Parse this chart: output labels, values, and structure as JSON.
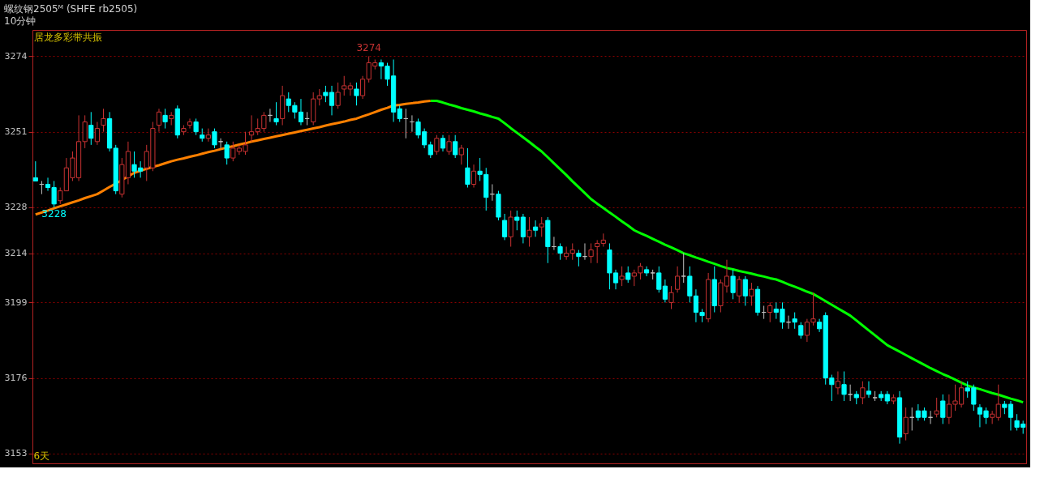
{
  "chart_data": {
    "type": "candlestick",
    "title": "螺纹钢2505ᴹ (SHFE rb2505)",
    "subtitle": "10分钟",
    "annotations": [
      "居龙多彩带共振",
      "6天",
      {
        "text": "3274",
        "y": 3274
      },
      {
        "text": "3228",
        "y": 3228
      }
    ],
    "categories": [
      null,
      null,
      null,
      null,
      null,
      null,
      null,
      null,
      null,
      null,
      null,
      null,
      null,
      null,
      null,
      null,
      null,
      null,
      null,
      null,
      null,
      null,
      null,
      null,
      null,
      null,
      null,
      null,
      null,
      null,
      null,
      null,
      null,
      null,
      null,
      null,
      null,
      null,
      null,
      null,
      null,
      null,
      null,
      null,
      null,
      null,
      null,
      null,
      null,
      null,
      null,
      null,
      null,
      null,
      null,
      null,
      null,
      null,
      null,
      null,
      null,
      null,
      null,
      null,
      null,
      null,
      null,
      null,
      null,
      null,
      null,
      null,
      null,
      null,
      null,
      null,
      null,
      null,
      null,
      null,
      null,
      null,
      null,
      null,
      null,
      null,
      null,
      null,
      null,
      null,
      null,
      null,
      null,
      null,
      null,
      null,
      null,
      null,
      null,
      null,
      null,
      null,
      null,
      null,
      null,
      null,
      null,
      null,
      null,
      null,
      null,
      null,
      null,
      null,
      null,
      null,
      null,
      null,
      null,
      null,
      null,
      null,
      null,
      null,
      null,
      null,
      null,
      null,
      null,
      null,
      null,
      null,
      null,
      null,
      null,
      null,
      null,
      null,
      null,
      null,
      null,
      null,
      null,
      null,
      null,
      null,
      null,
      null,
      null,
      null,
      null,
      null,
      null,
      null,
      null,
      null,
      null,
      null,
      null,
      null,
      null
    ],
    "ohlc": [
      [
        3237,
        3242,
        3236,
        3236
      ],
      [
        3235,
        3236,
        3232,
        3235
      ],
      [
        3235,
        3237,
        3233,
        3234
      ],
      [
        3234,
        3236,
        3228,
        3229
      ],
      [
        3230,
        3234,
        3229,
        3233
      ],
      [
        3233,
        3243,
        3233,
        3240
      ],
      [
        3237,
        3245,
        3236,
        3243
      ],
      [
        3237,
        3256,
        3236,
        3248
      ],
      [
        3248,
        3256,
        3246,
        3254
      ],
      [
        3253,
        3257,
        3247,
        3249
      ],
      [
        3248,
        3254,
        3247,
        3252
      ],
      [
        3253,
        3258,
        3251,
        3255
      ],
      [
        3255,
        3257,
        3245,
        3246
      ],
      [
        3246,
        3247,
        3232,
        3233
      ],
      [
        3232,
        3243,
        3231,
        3241
      ],
      [
        3237,
        3248,
        3235,
        3245
      ],
      [
        3241,
        3245,
        3237,
        3239
      ],
      [
        3240,
        3242,
        3237,
        3239
      ],
      [
        3240,
        3247,
        3236,
        3245
      ],
      [
        3240,
        3254,
        3239,
        3252
      ],
      [
        3253,
        3258,
        3251,
        3257
      ],
      [
        3256,
        3258,
        3252,
        3254
      ],
      [
        3255,
        3257,
        3253,
        3256
      ],
      [
        3258,
        3259,
        3249,
        3250
      ],
      [
        3251,
        3253,
        3250,
        3252
      ],
      [
        3253,
        3255,
        3252,
        3254
      ],
      [
        3254,
        3255,
        3250,
        3251
      ],
      [
        3250,
        3252,
        3248,
        3249
      ],
      [
        3249,
        3252,
        3248,
        3250
      ],
      [
        3251,
        3252,
        3246,
        3247
      ],
      [
        3248,
        3249,
        3246,
        3248
      ],
      [
        3247,
        3248,
        3241,
        3243
      ],
      [
        3243,
        3248,
        3242,
        3246
      ],
      [
        3245,
        3247,
        3244,
        3246
      ],
      [
        3245,
        3251,
        3244,
        3247
      ],
      [
        3250,
        3256,
        3248,
        3251
      ],
      [
        3251,
        3255,
        3250,
        3252
      ],
      [
        3252,
        3257,
        3251,
        3256
      ],
      [
        3256,
        3258,
        3254,
        3256
      ],
      [
        3255,
        3260,
        3253,
        3254
      ],
      [
        3255,
        3265,
        3253,
        3262
      ],
      [
        3261,
        3263,
        3257,
        3259
      ],
      [
        3259,
        3260,
        3255,
        3257
      ],
      [
        3257,
        3261,
        3253,
        3254
      ],
      [
        3255,
        3257,
        3253,
        3255
      ],
      [
        3254,
        3263,
        3253,
        3261
      ],
      [
        3261,
        3264,
        3259,
        3262
      ],
      [
        3263,
        3265,
        3260,
        3262
      ],
      [
        3263,
        3265,
        3256,
        3259
      ],
      [
        3259,
        3266,
        3258,
        3263
      ],
      [
        3264,
        3268,
        3262,
        3265
      ],
      [
        3264,
        3266,
        3262,
        3265
      ],
      [
        3264,
        3266,
        3259,
        3262
      ],
      [
        3262,
        3268,
        3261,
        3267
      ],
      [
        3267,
        3274,
        3266,
        3272
      ],
      [
        3271,
        3273,
        3270,
        3272
      ],
      [
        3272,
        3273,
        3267,
        3271
      ],
      [
        3271,
        3272,
        3265,
        3267
      ],
      [
        3268,
        3273,
        3254,
        3257
      ],
      [
        3258,
        3259,
        3254,
        3255
      ],
      [
        3255,
        3258,
        3249,
        3255
      ],
      [
        3254,
        3256,
        3251,
        3254
      ],
      [
        3254,
        3255,
        3249,
        3250
      ],
      [
        3251,
        3252,
        3246,
        3247
      ],
      [
        3247,
        3248,
        3243,
        3244
      ],
      [
        3245,
        3250,
        3244,
        3249
      ],
      [
        3249,
        3250,
        3245,
        3246
      ],
      [
        3245,
        3250,
        3244,
        3248
      ],
      [
        3248,
        3250,
        3243,
        3244
      ],
      [
        3244,
        3247,
        3241,
        3246
      ],
      [
        3240,
        3246,
        3234,
        3235
      ],
      [
        3235,
        3241,
        3234,
        3239
      ],
      [
        3239,
        3243,
        3236,
        3238
      ],
      [
        3238,
        3240,
        3227,
        3231
      ],
      [
        3232,
        3235,
        3230,
        3232
      ],
      [
        3232,
        3233,
        3224,
        3225
      ],
      [
        3224,
        3226,
        3218,
        3219
      ],
      [
        3219,
        3227,
        3216,
        3225
      ],
      [
        3225,
        3227,
        3221,
        3224
      ],
      [
        3225,
        3226,
        3217,
        3219
      ],
      [
        3219,
        3225,
        3216,
        3221
      ],
      [
        3222,
        3224,
        3219,
        3221
      ],
      [
        3222,
        3225,
        3219,
        3223
      ],
      [
        3224,
        3225,
        3211,
        3216
      ],
      [
        3216,
        3219,
        3215,
        3216
      ],
      [
        3216,
        3217,
        3212,
        3214
      ],
      [
        3213,
        3216,
        3212,
        3214
      ],
      [
        3214,
        3217,
        3212,
        3215
      ],
      [
        3214,
        3215,
        3210,
        3213
      ],
      [
        3213,
        3217,
        3212,
        3213
      ],
      [
        3213,
        3217,
        3211,
        3215
      ],
      [
        3216,
        3218,
        3211,
        3217
      ],
      [
        3217,
        3220,
        3216,
        3218
      ],
      [
        3215,
        3217,
        3203,
        3208
      ],
      [
        3208,
        3209,
        3203,
        3205
      ],
      [
        3206,
        3210,
        3204,
        3207
      ],
      [
        3208,
        3210,
        3205,
        3206
      ],
      [
        3207,
        3209,
        3204,
        3208
      ],
      [
        3208,
        3211,
        3206,
        3210
      ],
      [
        3209,
        3210,
        3207,
        3208
      ],
      [
        3208,
        3209,
        3206,
        3208
      ],
      [
        3208,
        3210,
        3202,
        3203
      ],
      [
        3204,
        3206,
        3199,
        3200
      ],
      [
        3199,
        3204,
        3197,
        3202
      ],
      [
        3203,
        3210,
        3202,
        3207
      ],
      [
        3207,
        3214,
        3205,
        3207
      ],
      [
        3207,
        3210,
        3199,
        3201
      ],
      [
        3201,
        3203,
        3193,
        3196
      ],
      [
        3196,
        3197,
        3193,
        3195
      ],
      [
        3194,
        3208,
        3193,
        3206
      ],
      [
        3206,
        3210,
        3196,
        3198
      ],
      [
        3198,
        3206,
        3196,
        3205
      ],
      [
        3204,
        3212,
        3202,
        3207
      ],
      [
        3207,
        3209,
        3200,
        3202
      ],
      [
        3201,
        3207,
        3199,
        3206
      ],
      [
        3206,
        3207,
        3198,
        3201
      ],
      [
        3201,
        3205,
        3198,
        3203
      ],
      [
        3203,
        3204,
        3195,
        3196
      ],
      [
        3196,
        3198,
        3194,
        3196
      ],
      [
        3196,
        3199,
        3193,
        3198
      ],
      [
        3197,
        3199,
        3194,
        3196
      ],
      [
        3197,
        3199,
        3191,
        3193
      ],
      [
        3193,
        3195,
        3191,
        3193
      ],
      [
        3194,
        3196,
        3191,
        3193
      ],
      [
        3192,
        3193,
        3188,
        3189
      ],
      [
        3189,
        3194,
        3187,
        3193
      ],
      [
        3193,
        3202,
        3192,
        3194
      ],
      [
        3193,
        3194,
        3190,
        3191
      ],
      [
        3195,
        3196,
        3174,
        3176
      ],
      [
        3176,
        3177,
        3169,
        3174
      ],
      [
        3173,
        3178,
        3171,
        3175
      ],
      [
        3174,
        3178,
        3169,
        3171
      ],
      [
        3171,
        3174,
        3169,
        3171
      ],
      [
        3171,
        3172,
        3168,
        3170
      ],
      [
        3170,
        3175,
        3168,
        3173
      ],
      [
        3172,
        3175,
        3170,
        3171
      ],
      [
        3170,
        3172,
        3169,
        3170
      ],
      [
        3171,
        3172,
        3169,
        3170
      ],
      [
        3171,
        3172,
        3168,
        3169
      ],
      [
        3169,
        3171,
        3168,
        3170
      ],
      [
        3170,
        3172,
        3156,
        3158
      ],
      [
        3159,
        3167,
        3157,
        3164
      ],
      [
        3164,
        3167,
        3160,
        3164
      ],
      [
        3166,
        3168,
        3163,
        3164
      ],
      [
        3166,
        3167,
        3163,
        3164
      ],
      [
        3164,
        3166,
        3162,
        3164
      ],
      [
        3165,
        3170,
        3164,
        3166
      ],
      [
        3169,
        3171,
        3162,
        3164
      ],
      [
        3164,
        3171,
        3162,
        3168
      ],
      [
        3168,
        3174,
        3166,
        3169
      ],
      [
        3168,
        3175,
        3167,
        3173
      ],
      [
        3173,
        3175,
        3170,
        3172
      ],
      [
        3173,
        3174,
        3166,
        3168
      ],
      [
        3167,
        3168,
        3161,
        3165
      ],
      [
        3166,
        3167,
        3162,
        3164
      ],
      [
        3164,
        3166,
        3162,
        3165
      ],
      [
        3164,
        3174,
        3163,
        3168
      ],
      [
        3168,
        3169,
        3165,
        3167
      ],
      [
        3168,
        3169,
        3160,
        3164
      ],
      [
        3163,
        3165,
        3160,
        3161
      ],
      [
        3162,
        3163,
        3159,
        3161
      ]
    ],
    "colors": [
      "#00ffff",
      "#c0c0c0",
      "#00ffff",
      "#00ffff",
      "#c83232",
      "#c83232",
      "#c83232",
      "#c83232",
      "#c83232",
      "#00ffff",
      "#c83232",
      "#c83232",
      "#00ffff",
      "#00ffff",
      "#c83232",
      "#c83232",
      "#00ffff",
      "#00ffff",
      "#c83232",
      "#c83232",
      "#c83232",
      "#00ffff",
      "#c83232",
      "#00ffff",
      "#c83232",
      "#c83232",
      "#00ffff",
      "#00ffff",
      "#c83232",
      "#00ffff",
      "#c0c0c0",
      "#00ffff",
      "#c83232",
      "#c83232",
      "#c83232",
      "#c83232",
      "#c83232",
      "#c83232",
      "#c0c0c0",
      "#00ffff",
      "#c83232",
      "#00ffff",
      "#00ffff",
      "#00ffff",
      "#c0c0c0",
      "#c83232",
      "#c83232",
      "#00ffff",
      "#00ffff",
      "#c83232",
      "#c83232",
      "#c83232",
      "#00ffff",
      "#c83232",
      "#c83232",
      "#c83232",
      "#00ffff",
      "#00ffff",
      "#00ffff",
      "#00ffff",
      "#c0c0c0",
      "#c0c0c0",
      "#00ffff",
      "#00ffff",
      "#00ffff",
      "#c83232",
      "#00ffff",
      "#c83232",
      "#00ffff",
      "#c83232",
      "#00ffff",
      "#c83232",
      "#00ffff",
      "#00ffff",
      "#c0c0c0",
      "#00ffff",
      "#00ffff",
      "#c83232",
      "#00ffff",
      "#00ffff",
      "#c83232",
      "#00ffff",
      "#c83232",
      "#00ffff",
      "#c0c0c0",
      "#00ffff",
      "#c83232",
      "#c83232",
      "#00ffff",
      "#c0c0c0",
      "#c83232",
      "#c83232",
      "#c83232",
      "#00ffff",
      "#00ffff",
      "#c83232",
      "#00ffff",
      "#c83232",
      "#c83232",
      "#00ffff",
      "#c0c0c0",
      "#00ffff",
      "#00ffff",
      "#c83232",
      "#c83232",
      "#c0c0c0",
      "#00ffff",
      "#00ffff",
      "#00ffff",
      "#c83232",
      "#00ffff",
      "#c83232",
      "#c83232",
      "#00ffff",
      "#c83232",
      "#00ffff",
      "#c83232",
      "#00ffff",
      "#c0c0c0",
      "#c83232",
      "#00ffff",
      "#00ffff",
      "#c0c0c0",
      "#00ffff",
      "#00ffff",
      "#c83232",
      "#c83232",
      "#00ffff",
      "#00ffff",
      "#00ffff",
      "#c83232",
      "#00ffff",
      "#c0c0c0",
      "#00ffff",
      "#c83232",
      "#00ffff",
      "#c0c0c0",
      "#00ffff",
      "#00ffff",
      "#c83232",
      "#00ffff",
      "#c83232",
      "#c0c0c0",
      "#00ffff",
      "#00ffff",
      "#c0c0c0",
      "#c83232",
      "#00ffff",
      "#c83232",
      "#c83232",
      "#c83232",
      "#00ffff",
      "#00ffff",
      "#00ffff",
      "#00ffff",
      "#c83232",
      "#c83232",
      "#00ffff",
      "#00ffff",
      "#00ffff",
      "#00ffff"
    ],
    "series": [
      {
        "type": "line",
        "color": "#ff8000",
        "values": [
          3225.8,
          3226.4,
          3227.0,
          3227.7,
          3228.3,
          3228.9,
          3229.5,
          3230.1,
          3230.8,
          3231.4,
          3232.0,
          3233.1,
          3234.2,
          3235.2,
          3236.3,
          3237.4,
          3238.5,
          3239.1,
          3239.7,
          3240.3,
          3240.8,
          3241.4,
          3242.0,
          3242.5,
          3242.9,
          3243.4,
          3243.8,
          3244.3,
          3244.8,
          3245.2,
          3245.7,
          3246.2,
          3246.6,
          3247.1,
          3247.5,
          3248.0,
          3248.4,
          3248.8,
          3249.2,
          3249.6,
          3250.0,
          3250.4,
          3250.8,
          3251.2,
          3251.6,
          3252.0,
          3252.4,
          3252.9,
          3253.3,
          3253.7,
          3254.1,
          3254.6,
          3255.0,
          3255.7,
          3256.3,
          3257.0,
          3257.7,
          3258.3,
          3259.0,
          3259.2,
          3259.5,
          3259.7,
          3259.9,
          3260.2,
          3260.4,
          null,
          null,
          null,
          null,
          null,
          null,
          null,
          null,
          null,
          null,
          null,
          null,
          null,
          null,
          null,
          null,
          null,
          null,
          null,
          null,
          null,
          null,
          null,
          null,
          null,
          null,
          null,
          null,
          null,
          null,
          null,
          null,
          null,
          null,
          null,
          null,
          null,
          null,
          null,
          null,
          null,
          null,
          null,
          null,
          null,
          null,
          null,
          null,
          null,
          null,
          null,
          null,
          null,
          null,
          null,
          null,
          null,
          null,
          null,
          null,
          null,
          null,
          null,
          null,
          null,
          null,
          null,
          null,
          null,
          null,
          null,
          null,
          null,
          null,
          null,
          null,
          null,
          null,
          null,
          null,
          null,
          null,
          null,
          null,
          null,
          null,
          null,
          null,
          null,
          null,
          null,
          null,
          null,
          null,
          null,
          null
        ]
      },
      {
        "type": "line",
        "color": "#00ff00",
        "values": [
          null,
          null,
          null,
          null,
          null,
          null,
          null,
          null,
          null,
          null,
          null,
          null,
          null,
          null,
          null,
          null,
          null,
          null,
          null,
          null,
          null,
          null,
          null,
          null,
          null,
          null,
          null,
          null,
          null,
          null,
          null,
          null,
          null,
          null,
          null,
          null,
          null,
          null,
          null,
          null,
          null,
          null,
          null,
          null,
          null,
          null,
          null,
          null,
          null,
          null,
          null,
          null,
          null,
          null,
          null,
          null,
          null,
          null,
          null,
          null,
          null,
          null,
          null,
          null,
          3260.4,
          3260.4,
          3259.9,
          3259.3,
          3258.8,
          3258.2,
          3257.7,
          3257.2,
          3256.6,
          3256.1,
          3255.5,
          3255.0,
          3253.6,
          3252.1,
          3250.7,
          3249.3,
          3247.9,
          3246.4,
          3245.0,
          3243.2,
          3241.4,
          3239.6,
          3237.8,
          3235.9,
          3234.1,
          3232.3,
          3230.5,
          3229.1,
          3227.8,
          3226.4,
          3225.1,
          3223.7,
          3222.4,
          3221.0,
          3220.1,
          3219.3,
          3218.4,
          3217.5,
          3216.6,
          3215.8,
          3214.9,
          3214.0,
          3213.4,
          3212.7,
          3212.1,
          3211.4,
          3210.8,
          3210.1,
          3209.5,
          3209.1,
          3208.6,
          3208.2,
          3207.8,
          3207.3,
          3206.9,
          3206.4,
          3206.0,
          3205.3,
          3204.5,
          3203.8,
          3203.1,
          3202.3,
          3201.6,
          3200.5,
          3199.4,
          3198.3,
          3197.2,
          3196.1,
          3195.0,
          3193.5,
          3192.0,
          3190.5,
          3189.0,
          3187.5,
          3186.0,
          3185.0,
          3184.0,
          3183.0,
          3182.0,
          3181.0,
          3180.0,
          3179.0,
          3178.1,
          3177.2,
          3176.4,
          3175.5,
          3174.6,
          3173.7,
          3173.1,
          3172.6,
          3172.0,
          3171.4,
          3170.9,
          3170.3,
          3169.7,
          3169.2,
          3168.6
        ]
      }
    ],
    "ylim": [
      3150,
      3282
    ],
    "yticks": [
      3153,
      3176,
      3199,
      3214,
      3228,
      3251,
      3274
    ],
    "grid": "y",
    "tick_labels": "y"
  }
}
